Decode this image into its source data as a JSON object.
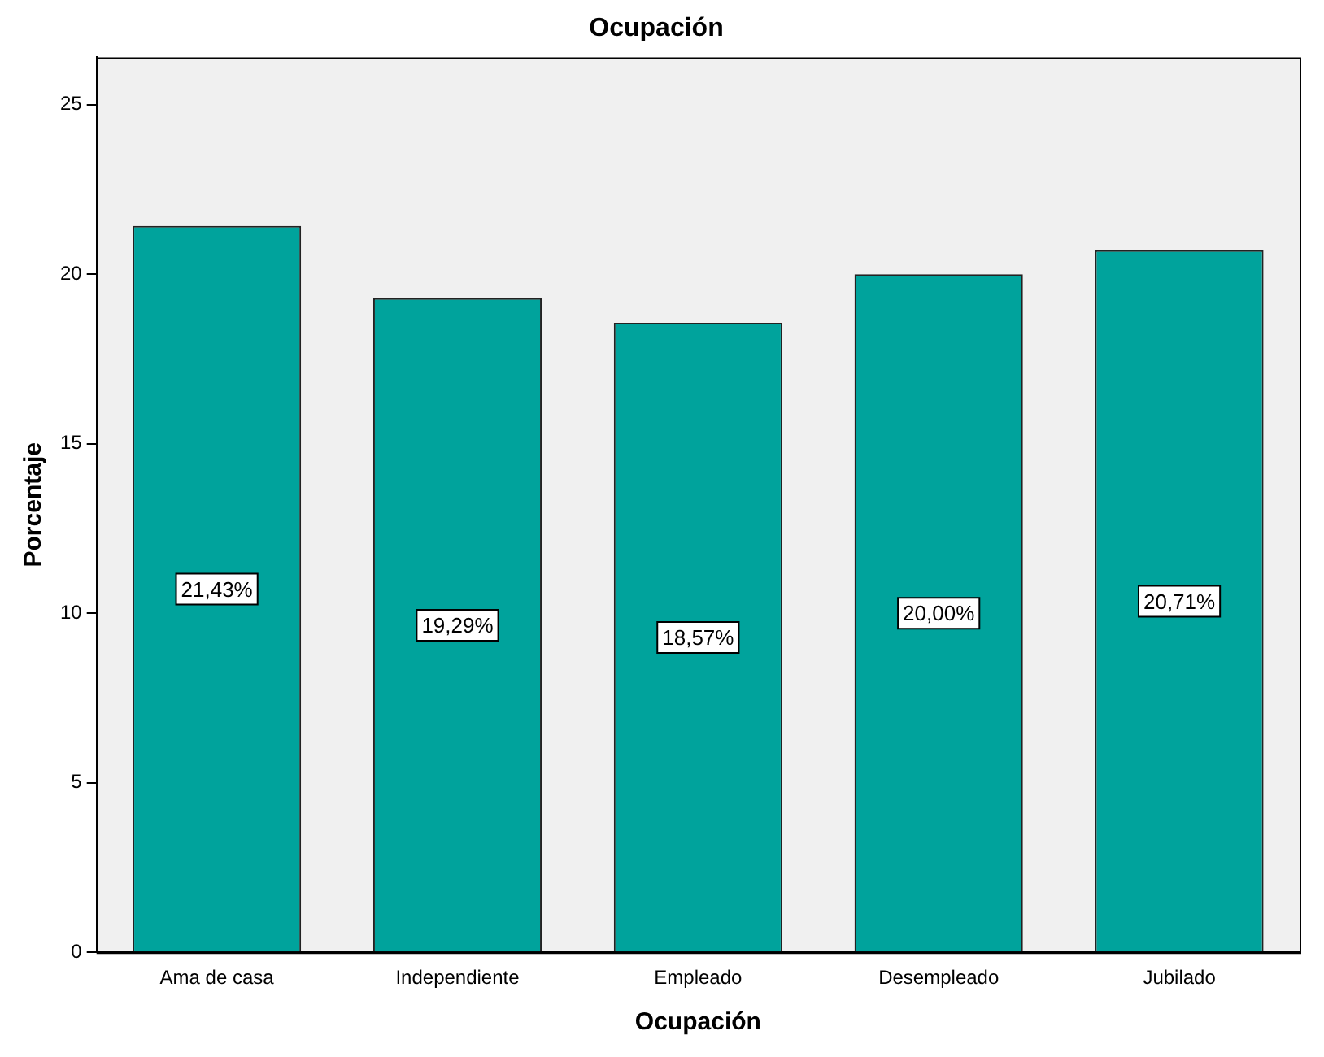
{
  "chart_data": {
    "type": "bar",
    "title": "Ocupación",
    "xlabel": "Ocupación",
    "ylabel": "Porcentaje",
    "categories": [
      "Ama de casa",
      "Independiente",
      "Empleado",
      "Desempleado",
      "Jubilado"
    ],
    "values": [
      21.43,
      19.29,
      18.57,
      20.0,
      20.71
    ],
    "value_labels": [
      "21,43%",
      "19,29%",
      "18,57%",
      "20,00%",
      "20,71%"
    ],
    "color": "#00a39c",
    "ylim": [
      0,
      26.4
    ],
    "yticks": [
      0,
      5,
      10,
      15,
      20,
      25
    ],
    "grid": false,
    "legend": false
  }
}
